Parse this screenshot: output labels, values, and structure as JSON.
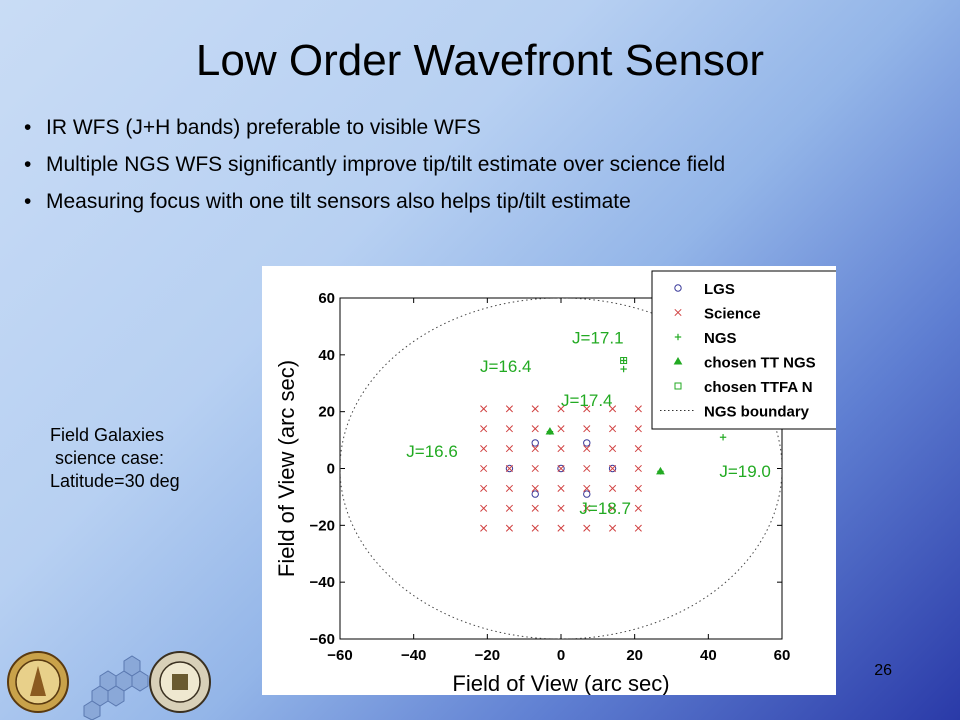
{
  "slide": {
    "title": "Low Order Wavefront Sensor",
    "bullets": [
      "IR WFS (J+H bands) preferable to visible WFS",
      "Multiple NGS WFS significantly improve tip/tilt estimate over science field",
      "Measuring focus with one tilt sensors also helps tip/tilt estimate"
    ],
    "side_note": [
      "Field Galaxies",
      " science case:",
      "Latitude=30 deg"
    ],
    "page_number": "26"
  },
  "colors": {
    "lgs": "#3a3a9a",
    "science": "#d04040",
    "ngs": "#22aa22",
    "label": "#22aa22"
  },
  "chart_data": {
    "type": "scatter",
    "xlabel": "Field of View (arc sec)",
    "ylabel": "Field of View (arc sec)",
    "xlim": [
      -60,
      60
    ],
    "ylim": [
      -60,
      60
    ],
    "xticks": [
      -60,
      -40,
      -20,
      0,
      20,
      40,
      60
    ],
    "yticks": [
      -60,
      -40,
      -20,
      0,
      20,
      40,
      60
    ],
    "xtick_labels": [
      "−60",
      "−40",
      "−20",
      "0",
      "20",
      "40",
      "60"
    ],
    "ytick_labels": [
      "−60",
      "−40",
      "−20",
      "0",
      "20",
      "40",
      "60"
    ],
    "legend": {
      "placement": "top-right",
      "entries": [
        "LGS",
        "Science",
        "NGS",
        "chosen TT NGS",
        "chosen TTFA N",
        "NGS boundary"
      ]
    },
    "ngs_boundary_radius": 60,
    "series": [
      {
        "name": "LGS",
        "marker": "circle",
        "points": [
          [
            -14,
            0
          ],
          [
            14,
            0
          ],
          [
            0,
            0
          ],
          [
            -7,
            9
          ],
          [
            7,
            9
          ],
          [
            -7,
            -9
          ],
          [
            7,
            -9
          ]
        ]
      },
      {
        "name": "Science",
        "marker": "x",
        "grid": {
          "start": -21,
          "end": 21,
          "step": 7
        }
      },
      {
        "name": "NGS",
        "marker": "plus",
        "points": [
          [
            17,
            38
          ],
          [
            27,
            39
          ],
          [
            17,
            35
          ],
          [
            44,
            11
          ],
          [
            27,
            -1
          ],
          [
            -3,
            13
          ]
        ]
      },
      {
        "name": "chosen TT NGS",
        "marker": "triangle",
        "points": [
          [
            -3,
            13
          ],
          [
            27,
            -1
          ]
        ]
      },
      {
        "name": "chosen TTFA N",
        "marker": "square",
        "points": [
          [
            17,
            38
          ]
        ]
      }
    ],
    "annotations": [
      {
        "text": "J=17.1",
        "x": 3,
        "y": 44
      },
      {
        "text": "J=16.4",
        "x": -22,
        "y": 34
      },
      {
        "text": "J=17.4",
        "x": 0,
        "y": 22
      },
      {
        "text": "J=16.6",
        "x": -42,
        "y": 4
      },
      {
        "text": "J=19.0",
        "x": 43,
        "y": -3
      },
      {
        "text": "J=18.7",
        "x": 5,
        "y": -16
      }
    ]
  }
}
